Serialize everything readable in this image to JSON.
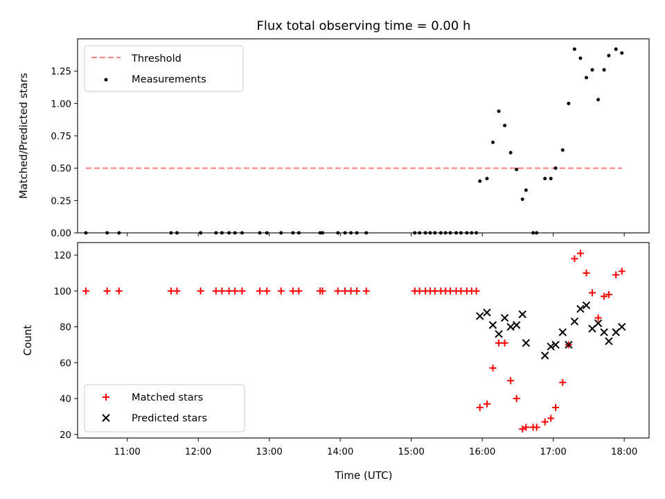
{
  "chart_data": [
    {
      "type": "scatter",
      "title": "Flux total observing time = 0.00 h",
      "xlabel": "",
      "ylabel": "Matched/Predicted stars",
      "xlim": [
        "10:18",
        "18:21"
      ],
      "ylim": [
        0,
        1.5
      ],
      "yticks": [
        "0.00",
        "0.25",
        "0.50",
        "0.75",
        "1.00",
        "1.25"
      ],
      "legend_position": "top-left",
      "threshold": {
        "name": "Threshold",
        "value": 0.5,
        "x_start": "10:25",
        "x_end": "17:58",
        "color": "#ff7f7f"
      },
      "series": [
        {
          "name": "Measurements",
          "color": "#000000",
          "marker": "dot",
          "x": [
            "10:25",
            "10:43",
            "10:53",
            "11:37",
            "11:42",
            "12:02",
            "12:15",
            "12:20",
            "12:26",
            "12:31",
            "12:37",
            "12:52",
            "12:58",
            "13:10",
            "13:20",
            "13:25",
            "13:43",
            "13:45",
            "13:58",
            "14:04",
            "14:09",
            "14:14",
            "14:22",
            "15:03",
            "15:07",
            "15:12",
            "15:16",
            "15:20",
            "15:25",
            "15:29",
            "15:33",
            "15:38",
            "15:42",
            "15:47",
            "15:51",
            "15:55",
            "15:58",
            "16:04",
            "16:09",
            "16:14",
            "16:19",
            "16:24",
            "16:29",
            "16:34",
            "16:37",
            "16:43",
            "16:46",
            "16:53",
            "16:58",
            "17:02",
            "17:08",
            "17:13",
            "17:18",
            "17:23",
            "17:28",
            "17:33",
            "17:38",
            "17:43",
            "17:47",
            "17:53",
            "17:58"
          ],
          "y": [
            0,
            0,
            0,
            0,
            0,
            0,
            0,
            0,
            0,
            0,
            0,
            0,
            0,
            0,
            0,
            0,
            0,
            0,
            0,
            0,
            0,
            0,
            0,
            0,
            0,
            0,
            0,
            0,
            0,
            0,
            0,
            0,
            0,
            0,
            0,
            0,
            0.4,
            0.42,
            0.7,
            0.94,
            0.83,
            0.62,
            0.49,
            0.26,
            0.33,
            0,
            0,
            0.42,
            0.42,
            0.5,
            0.64,
            1.0,
            1.42,
            1.35,
            1.2,
            1.26,
            1.03,
            1.26,
            1.37,
            1.42,
            1.39
          ]
        }
      ]
    },
    {
      "type": "scatter",
      "title": "",
      "xlabel": "Time (UTC)",
      "ylabel": "Count",
      "xlim": [
        "10:18",
        "18:21"
      ],
      "ylim": [
        18,
        127
      ],
      "yticks": [
        "20",
        "40",
        "60",
        "80",
        "100",
        "120"
      ],
      "xticks": [
        "11:00",
        "12:00",
        "13:00",
        "14:00",
        "15:00",
        "16:00",
        "17:00",
        "18:00"
      ],
      "legend_position": "bottom-left",
      "series": [
        {
          "name": "Matched stars",
          "color": "#ff0000",
          "marker": "plus",
          "x": [
            "10:25",
            "10:43",
            "10:53",
            "11:37",
            "11:42",
            "12:02",
            "12:15",
            "12:20",
            "12:26",
            "12:31",
            "12:37",
            "12:52",
            "12:58",
            "13:10",
            "13:20",
            "13:25",
            "13:43",
            "13:45",
            "13:58",
            "14:04",
            "14:09",
            "14:14",
            "14:22",
            "15:03",
            "15:07",
            "15:12",
            "15:16",
            "15:20",
            "15:25",
            "15:29",
            "15:33",
            "15:38",
            "15:42",
            "15:47",
            "15:51",
            "15:55",
            "15:58",
            "16:04",
            "16:09",
            "16:14",
            "16:19",
            "16:24",
            "16:29",
            "16:34",
            "16:37",
            "16:43",
            "16:46",
            "16:53",
            "16:58",
            "17:02",
            "17:08",
            "17:13",
            "17:18",
            "17:23",
            "17:28",
            "17:33",
            "17:38",
            "17:43",
            "17:47",
            "17:53",
            "17:58"
          ],
          "y": [
            100,
            100,
            100,
            100,
            100,
            100,
            100,
            100,
            100,
            100,
            100,
            100,
            100,
            100,
            100,
            100,
            100,
            100,
            100,
            100,
            100,
            100,
            100,
            100,
            100,
            100,
            100,
            100,
            100,
            100,
            100,
            100,
            100,
            100,
            100,
            100,
            35,
            37,
            57,
            71,
            71,
            50,
            40,
            23,
            24,
            24,
            24,
            27,
            29,
            35,
            49,
            70,
            118,
            121,
            110,
            99,
            85,
            97,
            98,
            109,
            111
          ]
        },
        {
          "name": "Predicted stars",
          "color": "#000000",
          "marker": "x",
          "x": [
            "15:58",
            "16:04",
            "16:09",
            "16:14",
            "16:19",
            "16:24",
            "16:29",
            "16:34",
            "16:37",
            "16:53",
            "16:58",
            "17:02",
            "17:08",
            "17:13",
            "17:18",
            "17:23",
            "17:28",
            "17:33",
            "17:38",
            "17:43",
            "17:47",
            "17:53",
            "17:58"
          ],
          "y": [
            86,
            88,
            81,
            76,
            85,
            80,
            81,
            87,
            71,
            64,
            69,
            70,
            77,
            70,
            83,
            90,
            92,
            79,
            82,
            77,
            72,
            77,
            80
          ]
        }
      ]
    }
  ]
}
